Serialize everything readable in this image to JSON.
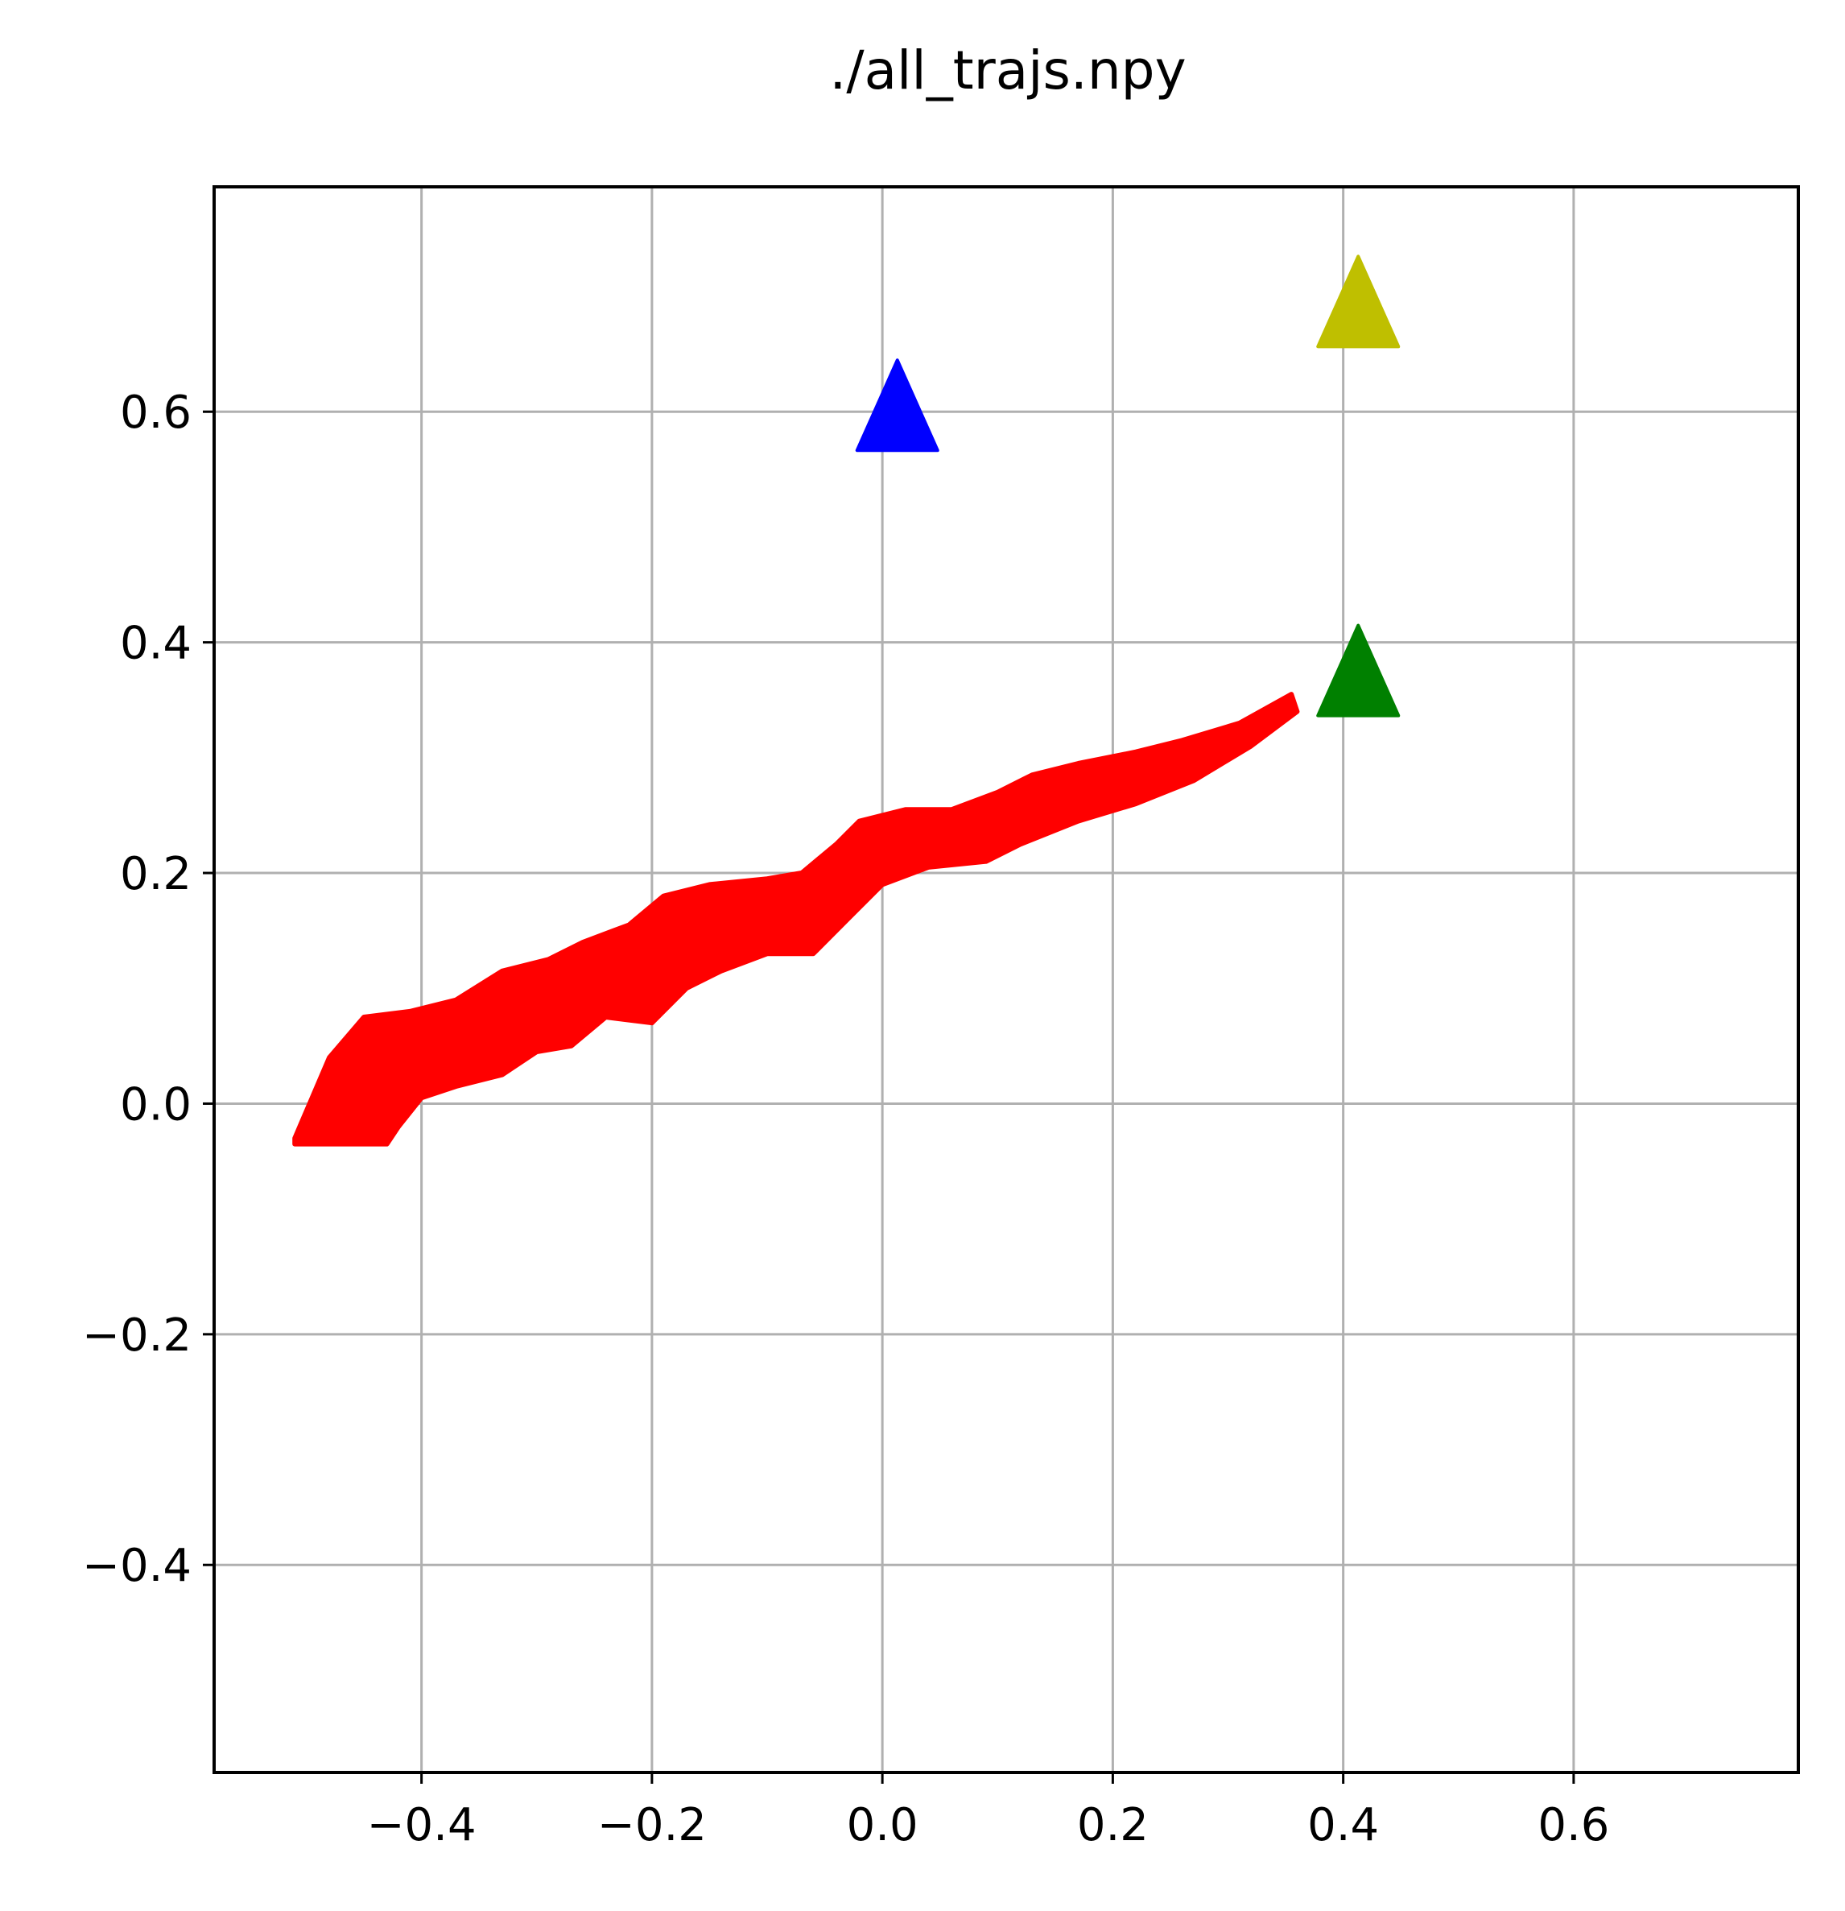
{
  "chart_data": {
    "type": "scatter",
    "title": "./all_trajs.npy",
    "xlabel": "",
    "ylabel": "",
    "xlim": [
      -0.58,
      0.795
    ],
    "ylim": [
      -0.58,
      0.795
    ],
    "xticks": [
      -0.4,
      -0.2,
      0.0,
      0.2,
      0.4,
      0.6
    ],
    "yticks": [
      -0.4,
      -0.2,
      0.0,
      0.2,
      0.4,
      0.6
    ],
    "xtick_labels": [
      "−0.4",
      "−0.2",
      "0.0",
      "0.2",
      "0.4",
      "0.6"
    ],
    "ytick_labels": [
      "−0.4",
      "−0.2",
      "0.0",
      "0.2",
      "0.4",
      "0.6"
    ],
    "grid": true,
    "trajectory_band": {
      "color": "#ff0000",
      "upper": [
        [
          -0.51,
          -0.03
        ],
        [
          -0.48,
          0.04
        ],
        [
          -0.45,
          0.075
        ],
        [
          -0.41,
          0.08
        ],
        [
          -0.37,
          0.09
        ],
        [
          -0.33,
          0.115
        ],
        [
          -0.29,
          0.125
        ],
        [
          -0.26,
          0.14
        ],
        [
          -0.22,
          0.155
        ],
        [
          -0.19,
          0.18
        ],
        [
          -0.15,
          0.19
        ],
        [
          -0.1,
          0.195
        ],
        [
          -0.07,
          0.2
        ],
        [
          -0.04,
          0.225
        ],
        [
          -0.02,
          0.245
        ],
        [
          0.02,
          0.255
        ],
        [
          0.06,
          0.255
        ],
        [
          0.1,
          0.27
        ],
        [
          0.13,
          0.285
        ],
        [
          0.17,
          0.295
        ],
        [
          0.22,
          0.305
        ],
        [
          0.26,
          0.315
        ],
        [
          0.31,
          0.33
        ],
        [
          0.355,
          0.355
        ]
      ],
      "lower": [
        [
          0.36,
          0.34
        ],
        [
          0.32,
          0.31
        ],
        [
          0.27,
          0.28
        ],
        [
          0.22,
          0.26
        ],
        [
          0.17,
          0.245
        ],
        [
          0.12,
          0.225
        ],
        [
          0.09,
          0.21
        ],
        [
          0.04,
          0.205
        ],
        [
          0.0,
          0.19
        ],
        [
          -0.03,
          0.16
        ],
        [
          -0.06,
          0.13
        ],
        [
          -0.1,
          0.13
        ],
        [
          -0.14,
          0.115
        ],
        [
          -0.17,
          0.1
        ],
        [
          -0.2,
          0.07
        ],
        [
          -0.24,
          0.075
        ],
        [
          -0.27,
          0.05
        ],
        [
          -0.3,
          0.045
        ],
        [
          -0.33,
          0.025
        ],
        [
          -0.37,
          0.015
        ],
        [
          -0.4,
          0.005
        ],
        [
          -0.42,
          -0.02
        ],
        [
          -0.43,
          -0.035
        ],
        [
          -0.51,
          -0.035
        ]
      ]
    },
    "series": [
      {
        "color": "#0000ff",
        "marker": "triangle-up",
        "x": [
          0.013
        ],
        "y": [
          0.6
        ]
      },
      {
        "color": "#bfbf00",
        "marker": "triangle-up",
        "x": [
          0.413
        ],
        "y": [
          0.69
        ]
      },
      {
        "color": "#008000",
        "marker": "triangle-up",
        "x": [
          0.413
        ],
        "y": [
          0.37
        ]
      }
    ]
  }
}
